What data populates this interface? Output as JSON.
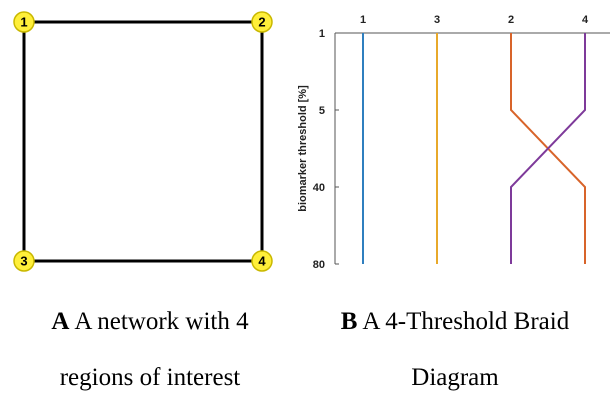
{
  "panel_a": {
    "nodes": [
      {
        "id": "1"
      },
      {
        "id": "2"
      },
      {
        "id": "3"
      },
      {
        "id": "4"
      }
    ],
    "edges": [
      [
        "1",
        "2"
      ],
      [
        "2",
        "4"
      ],
      [
        "4",
        "3"
      ],
      [
        "3",
        "1"
      ]
    ],
    "node_fill": "#ffef3a",
    "node_stroke": "#c9b800",
    "edge_color": "#000000",
    "caption_letter": "A",
    "caption_line1": "A network with 4",
    "caption_line2": "regions of interest"
  },
  "panel_b": {
    "caption_letter": "B",
    "caption_line1": "A 4-Threshold Braid",
    "caption_line2": "Diagram"
  },
  "chart_data": {
    "type": "line",
    "ylabel": "biomarker threshold [%]",
    "y_tick_labels": [
      "1",
      "5",
      "40",
      "80"
    ],
    "x_tick_labels": [
      "1",
      "3",
      "2",
      "4"
    ],
    "series": [
      {
        "label": "1",
        "color": "#2f7fbf",
        "positions": [
          "1",
          "1",
          "1",
          "1"
        ]
      },
      {
        "label": "3",
        "color": "#e8a92b",
        "positions": [
          "3",
          "3",
          "3",
          "3"
        ]
      },
      {
        "label": "2",
        "color": "#d8642a",
        "positions": [
          "2",
          "2",
          "4",
          "4"
        ]
      },
      {
        "label": "4",
        "color": "#7e3a9a",
        "positions": [
          "4",
          "4",
          "2",
          "2"
        ]
      }
    ]
  }
}
